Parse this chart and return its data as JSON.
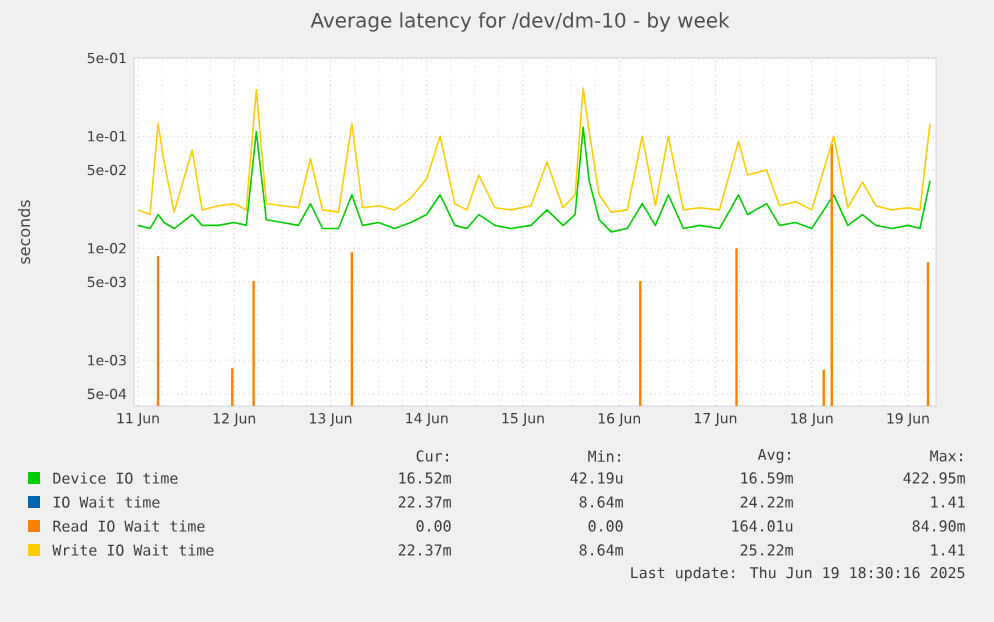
{
  "chart_data": {
    "type": "line",
    "title": "Average latency for /dev/dm-10 - by week",
    "ylabel": "seconds",
    "log": "y",
    "grid": true,
    "legend": "bottom",
    "ylim": [
      0.00039,
      0.5
    ],
    "yticks": [
      {
        "value": 0.0005,
        "label": "5e-04"
      },
      {
        "value": 0.001,
        "label": "1e-03"
      },
      {
        "value": 0.005,
        "label": "5e-03"
      },
      {
        "value": 0.01,
        "label": "1e-02"
      },
      {
        "value": 0.05,
        "label": "5e-02"
      },
      {
        "value": 0.1,
        "label": "1e-01"
      },
      {
        "value": 0.5,
        "label": "5e-01"
      }
    ],
    "xlim": [
      "2025-06-10T23:00",
      "2025-06-19T07:00"
    ],
    "xticks": [
      {
        "value": "2025-06-11",
        "label": "11 Jun"
      },
      {
        "value": "2025-06-12",
        "label": "12 Jun"
      },
      {
        "value": "2025-06-13",
        "label": "13 Jun"
      },
      {
        "value": "2025-06-14",
        "label": "14 Jun"
      },
      {
        "value": "2025-06-15",
        "label": "15 Jun"
      },
      {
        "value": "2025-06-16",
        "label": "16 Jun"
      },
      {
        "value": "2025-06-17",
        "label": "17 Jun"
      },
      {
        "value": "2025-06-18",
        "label": "18 Jun"
      },
      {
        "value": "2025-06-19",
        "label": "19 Jun"
      }
    ],
    "x": [
      "2025-06-11T00:00",
      "2025-06-11T03:00",
      "2025-06-11T05:00",
      "2025-06-11T06:30",
      "2025-06-11T09:00",
      "2025-06-11T13:30",
      "2025-06-11T16:00",
      "2025-06-11T20:00",
      "2025-06-12T00:00",
      "2025-06-12T03:00",
      "2025-06-12T05:30",
      "2025-06-12T08:00",
      "2025-06-12T12:00",
      "2025-06-12T16:00",
      "2025-06-12T19:00",
      "2025-06-12T22:00",
      "2025-06-13T02:00",
      "2025-06-13T05:20",
      "2025-06-13T08:00",
      "2025-06-13T12:00",
      "2025-06-13T16:00",
      "2025-06-13T20:00",
      "2025-06-14T00:00",
      "2025-06-14T03:20",
      "2025-06-14T07:00",
      "2025-06-14T10:00",
      "2025-06-14T13:00",
      "2025-06-14T17:00",
      "2025-06-14T21:00",
      "2025-06-15T02:00",
      "2025-06-15T06:00",
      "2025-06-15T10:00",
      "2025-06-15T13:00",
      "2025-06-15T15:00",
      "2025-06-15T16:30",
      "2025-06-15T19:00",
      "2025-06-15T22:00",
      "2025-06-16T02:00",
      "2025-06-16T05:45",
      "2025-06-16T09:00",
      "2025-06-16T12:15",
      "2025-06-16T16:00",
      "2025-06-16T20:00",
      "2025-06-17T01:00",
      "2025-06-17T05:45",
      "2025-06-17T08:00",
      "2025-06-17T12:45",
      "2025-06-17T16:00",
      "2025-06-17T20:00",
      "2025-06-18T00:00",
      "2025-06-18T05:30",
      "2025-06-18T09:00",
      "2025-06-18T12:40",
      "2025-06-18T16:00",
      "2025-06-18T20:00",
      "2025-06-19T00:00",
      "2025-06-19T03:00",
      "2025-06-19T05:30"
    ],
    "series": [
      {
        "name": "Device IO time",
        "color": "#00cc00",
        "values": [
          0.016,
          0.015,
          0.02,
          0.017,
          0.015,
          0.02,
          0.016,
          0.016,
          0.017,
          0.016,
          0.11,
          0.018,
          0.017,
          0.016,
          0.025,
          0.015,
          0.015,
          0.03,
          0.016,
          0.017,
          0.015,
          0.017,
          0.02,
          0.03,
          0.016,
          0.015,
          0.02,
          0.016,
          0.015,
          0.016,
          0.022,
          0.016,
          0.02,
          0.12,
          0.04,
          0.018,
          0.014,
          0.015,
          0.025,
          0.016,
          0.03,
          0.015,
          0.016,
          0.015,
          0.03,
          0.02,
          0.025,
          0.016,
          0.017,
          0.015,
          0.03,
          0.016,
          0.02,
          0.016,
          0.015,
          0.016,
          0.015,
          0.04
        ]
      },
      {
        "name": "IO Wait time",
        "color": "#0066b3",
        "values": [
          null,
          null,
          null,
          null,
          null,
          null,
          null,
          null,
          null,
          null,
          null,
          null,
          null,
          null,
          null,
          null,
          null,
          null,
          null,
          null,
          null,
          null,
          null,
          null,
          null,
          null,
          null,
          null,
          null,
          null,
          null,
          null,
          null,
          null,
          null,
          null,
          null,
          null,
          null,
          null,
          null,
          null,
          null,
          null,
          null,
          null,
          null,
          null,
          null,
          null,
          null,
          null,
          null,
          null,
          null,
          null,
          null,
          null
        ]
      },
      {
        "name": "Read IO Wait time",
        "color": "#ff8000",
        "type": "bar",
        "x": [
          "2025-06-11T05:00",
          "2025-06-11T23:30",
          "2025-06-12T04:50",
          "2025-06-13T05:20",
          "2025-06-16T05:15",
          "2025-06-17T05:15",
          "2025-06-18T03:00",
          "2025-06-18T05:00",
          "2025-06-19T05:00"
        ],
        "values": [
          0.0085,
          0.00085,
          0.0051,
          0.0092,
          0.0051,
          0.01,
          0.00082,
          0.085,
          0.0075
        ]
      },
      {
        "name": "Write IO Wait time",
        "color": "#ffcc00",
        "values": [
          0.022,
          0.02,
          0.13,
          0.059,
          0.021,
          0.075,
          0.022,
          0.024,
          0.025,
          0.022,
          0.26,
          0.025,
          0.024,
          0.023,
          0.063,
          0.022,
          0.021,
          0.13,
          0.023,
          0.024,
          0.022,
          0.028,
          0.042,
          0.1,
          0.025,
          0.022,
          0.045,
          0.023,
          0.022,
          0.024,
          0.059,
          0.023,
          0.03,
          0.27,
          0.11,
          0.03,
          0.021,
          0.022,
          0.1,
          0.024,
          0.1,
          0.022,
          0.023,
          0.022,
          0.09,
          0.045,
          0.05,
          0.024,
          0.026,
          0.022,
          0.1,
          0.023,
          0.039,
          0.024,
          0.022,
          0.023,
          0.022,
          0.13
        ]
      }
    ],
    "annotations": [
      "Cur:",
      "Min:",
      "Avg:",
      "Max:",
      "16.52m",
      "42.19u",
      "16.59m",
      "422.95m",
      "22.37m",
      "8.64m",
      "24.22m",
      "1.41",
      "0.00",
      "0.00",
      "164.01u",
      "84.90m",
      "22.37m",
      "8.64m",
      "25.22m",
      "1.41",
      "Last update: Thu Jun 19 18:30:16 2025"
    ]
  }
}
